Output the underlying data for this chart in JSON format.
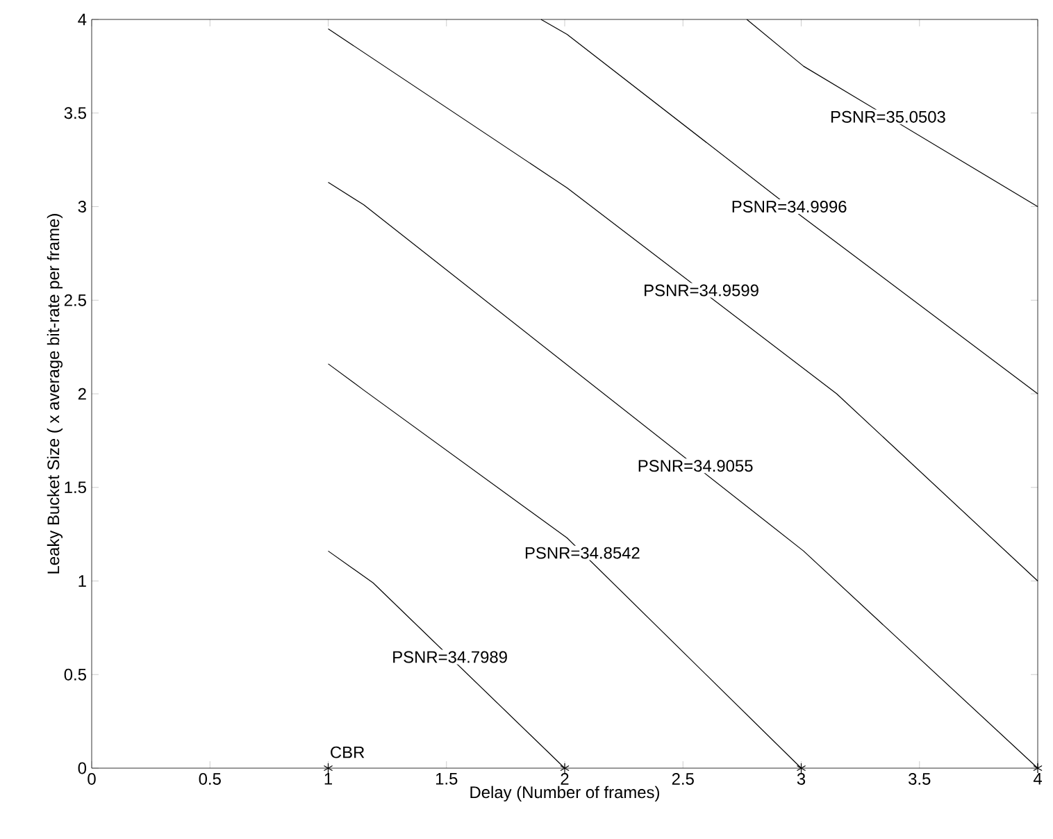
{
  "chart_data": {
    "type": "line",
    "xlabel": "Delay (Number of frames)",
    "ylabel": "Leaky Bucket Size ( x average bit-rate per frame)",
    "xlim": [
      0,
      4
    ],
    "ylim": [
      0,
      4
    ],
    "xticks": [
      0,
      0.5,
      1,
      1.5,
      2,
      2.5,
      3,
      3.5,
      4
    ],
    "yticks": [
      0,
      0.5,
      1,
      1.5,
      2,
      2.5,
      3,
      3.5,
      4
    ],
    "series": [
      {
        "name": "PSNR=34.7989",
        "color": "#000000",
        "x": [
          1,
          1.19,
          2
        ],
        "values": [
          1.16,
          0.99,
          0
        ]
      },
      {
        "name": "PSNR=34.8542",
        "color": "#000000",
        "x": [
          1,
          1.15,
          2.01,
          3
        ],
        "values": [
          2.16,
          2.02,
          1.23,
          0
        ]
      },
      {
        "name": "PSNR=34.9055",
        "color": "#000000",
        "x": [
          1,
          1.15,
          3.01,
          4
        ],
        "values": [
          3.13,
          3.01,
          1.16,
          0
        ]
      },
      {
        "name": "PSNR=34.9599",
        "color": "#000000",
        "x": [
          1,
          2.01,
          3.15,
          4
        ],
        "values": [
          3.95,
          3.1,
          2.0,
          1.0
        ]
      },
      {
        "name": "PSNR=34.9996",
        "color": "#000000",
        "x": [
          1.9,
          2.01,
          3,
          4
        ],
        "values": [
          4.0,
          3.92,
          2.95,
          2.0
        ]
      },
      {
        "name": "PSNR=35.0503",
        "color": "#000000",
        "x": [
          2.77,
          3.01,
          4
        ],
        "values": [
          4.0,
          3.75,
          3.0
        ]
      },
      {
        "name": "CBR",
        "type": "scatter",
        "marker": "cross",
        "color": "#000000",
        "x": [
          1,
          2,
          3,
          4
        ],
        "values": [
          0,
          0,
          0,
          0
        ]
      }
    ]
  }
}
